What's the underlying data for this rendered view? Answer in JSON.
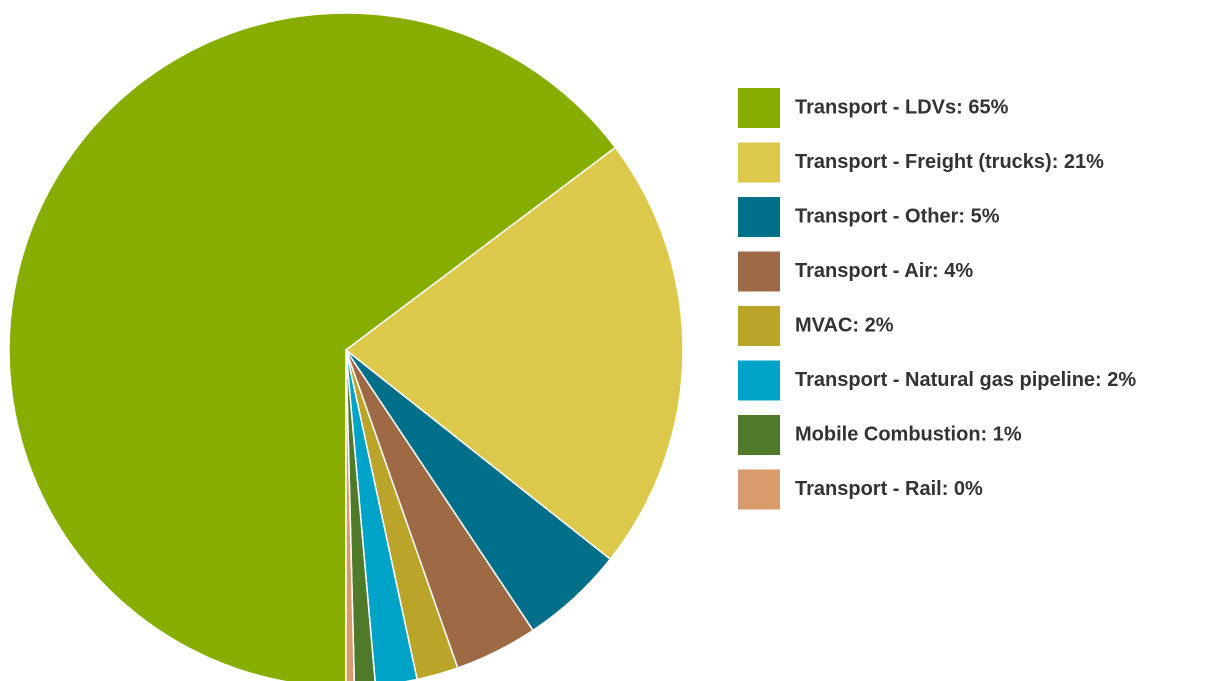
{
  "chart_data": {
    "type": "pie",
    "categories": [
      "Transport - LDVs: 65%",
      "Transport - Freight (trucks): 21%",
      "Transport - Other: 5%",
      "Transport - Air: 4%",
      "MVAC: 2%",
      "Transport - Natural gas pipeline: 2%",
      "Mobile Combustion: 1%",
      "Transport - Rail: 0%"
    ],
    "values": [
      65,
      21,
      5,
      4,
      2,
      2,
      1,
      0.4
    ],
    "colors": [
      "#86ad00",
      "#dcc84a",
      "#006f8a",
      "#9e6a45",
      "#bba42a",
      "#00a3c8",
      "#4e7a29",
      "#d99a6c"
    ]
  }
}
